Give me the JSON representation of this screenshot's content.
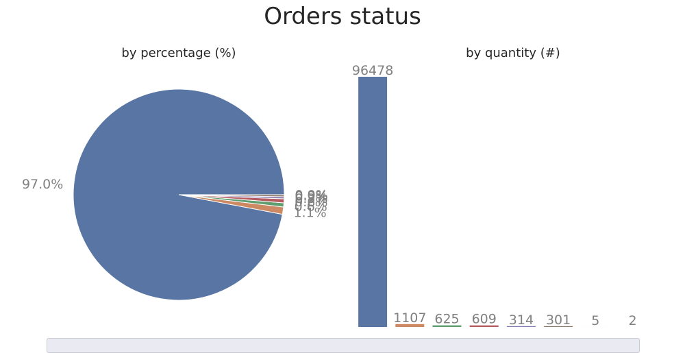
{
  "chart_data": {
    "title": "Orders status",
    "charts": [
      {
        "type": "pie",
        "subtitle": "by percentage (%)",
        "labels": [
          "97.0%",
          "1.1%",
          "0.6%",
          "0.6%",
          "0.3%",
          "0.3%",
          "0.0%",
          "0.0%"
        ],
        "values": [
          96478,
          1107,
          625,
          609,
          314,
          301,
          5,
          2
        ]
      },
      {
        "type": "bar",
        "subtitle": "by quantity (#)",
        "values": [
          96478,
          1107,
          625,
          609,
          314,
          301,
          5,
          2
        ],
        "labels": [
          "96478",
          "1107",
          "625",
          "609",
          "314",
          "301",
          "5",
          "2"
        ],
        "ylim": [
          0,
          96478
        ]
      }
    ],
    "colors": [
      "#5875a4",
      "#cc8963",
      "#5f9e6e",
      "#b55d60",
      "#857aab",
      "#8d7866",
      "#d095bf",
      "#8c8c8c"
    ],
    "label_color": "#808080"
  }
}
